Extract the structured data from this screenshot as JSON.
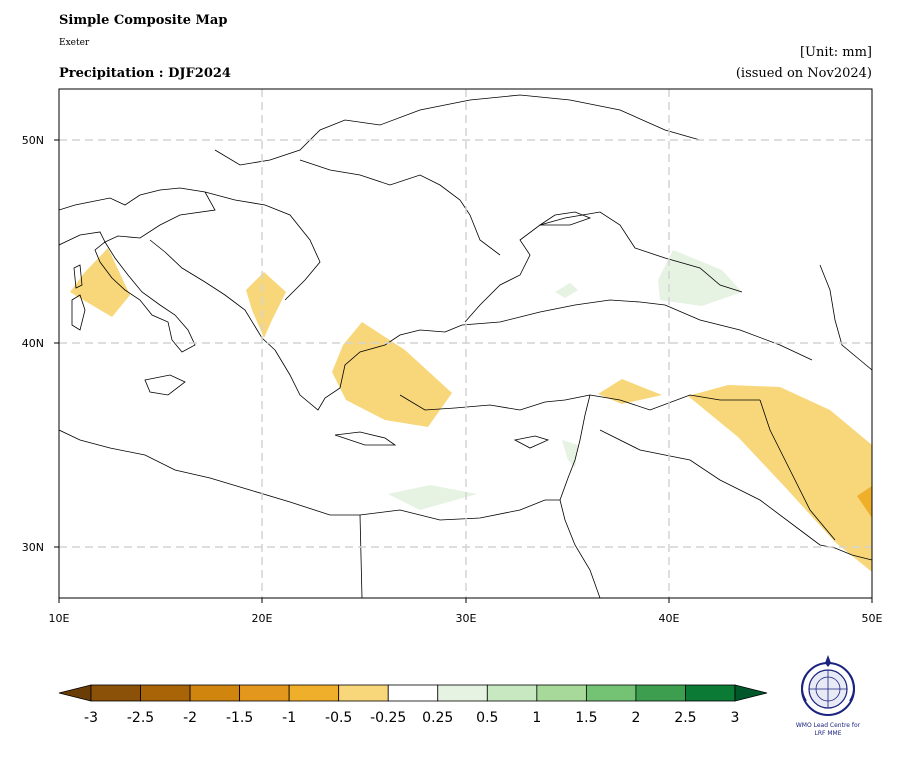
{
  "header": {
    "title": "Simple Composite Map",
    "subtitle": "Exeter",
    "variable": "Precipitation : DJF2024",
    "unit": "[Unit: mm]",
    "issued": "(issued on Nov2024)"
  },
  "map": {
    "lon_range": [
      10,
      50
    ],
    "lat_range": [
      27.5,
      52.5
    ],
    "lon_ticks": [
      "10E",
      "20E",
      "30E",
      "40E",
      "50E"
    ],
    "lat_ticks": [
      "30N",
      "40N",
      "50N"
    ],
    "grid": true,
    "anomaly_regions": [
      {
        "region": "Western Italy / Tyrrhenian coast",
        "category": "-0.5 to -0.25",
        "color": "#f8d77a"
      },
      {
        "region": "Albania / Montenegro",
        "category": "-0.5 to -0.25",
        "color": "#f8d77a"
      },
      {
        "region": "Aegean Sea / Greece / western Turkey",
        "category": "-0.5 to -0.25",
        "color": "#f8d77a"
      },
      {
        "region": "Southeastern Turkey",
        "category": "-0.5 to -0.25",
        "color": "#f8d77a"
      },
      {
        "region": "Iraq / Western Iran",
        "category": "-0.5 to -0.25",
        "color": "#f8d77a"
      },
      {
        "region": "Iran / Persian Gulf edge",
        "category": "-1 to -0.5",
        "color": "#efaf2a"
      },
      {
        "region": "Caucasus / Georgia",
        "category": "0.25 to 0.5",
        "color": "#e6f2e2"
      },
      {
        "region": "Eastern Black Sea coast",
        "category": "0.25 to 0.5",
        "color": "#e6f2e2"
      },
      {
        "region": "Lebanon / Syria coast",
        "category": "0.25 to 0.5",
        "color": "#e6f2e2"
      },
      {
        "region": "Libya / Egypt coast",
        "category": "0.25 to 0.5",
        "color": "#e6f2e2"
      }
    ]
  },
  "colorbar": {
    "labels": [
      "-3",
      "-2.5",
      "-2",
      "-1.5",
      "-1",
      "-0.5",
      "-0.25",
      "0.25",
      "0.5",
      "1",
      "1.5",
      "2",
      "2.5",
      "3"
    ],
    "colors": [
      "#8c5109",
      "#a86406",
      "#cf850e",
      "#e4971d",
      "#efaf2a",
      "#f8d77a",
      "#ffffff",
      "#e6f2e2",
      "#c7e8c0",
      "#a6d99a",
      "#74c375",
      "#3d9e4f",
      "#0a7a34"
    ],
    "under_color": "#6b3d06",
    "over_color": "#00582a"
  },
  "logo": {
    "line1": "WMO Lead Centre for",
    "line2": "LRF MME"
  }
}
